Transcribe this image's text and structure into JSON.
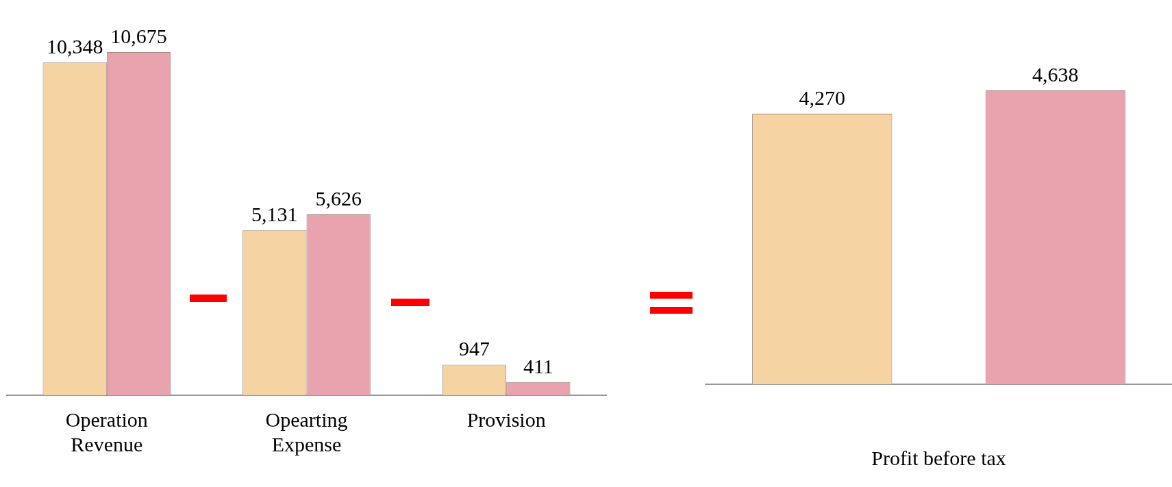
{
  "chart_data": [
    {
      "type": "bar",
      "categories": [
        "Operation Revenue",
        "Opearting Expense",
        "Provision"
      ],
      "series": [
        {
          "color": "#f5d3a3",
          "values": [
            10348,
            5131,
            947
          ],
          "value_labels": [
            "10,348",
            "5,131",
            "947"
          ]
        },
        {
          "color": "#e9a3af",
          "values": [
            10675,
            5626,
            411
          ],
          "value_labels": [
            "10,675",
            "5,626",
            "411"
          ]
        }
      ],
      "grid": false,
      "tick_labels": "x",
      "legend": false
    },
    {
      "type": "bar",
      "xlabel": "Profit before tax",
      "categories": [
        null,
        null
      ],
      "series": [
        {
          "colors": [
            "#f5d3a3",
            "#e9a3af"
          ],
          "values": [
            4270,
            4638
          ],
          "value_labels": [
            "4,270",
            "4,638"
          ]
        }
      ],
      "grid": false,
      "tick_labels": "x",
      "legend": false
    }
  ]
}
